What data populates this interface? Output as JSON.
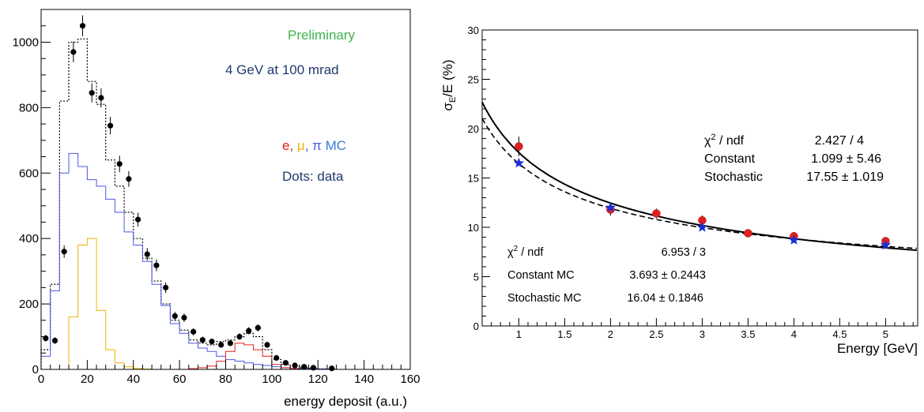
{
  "chart_data": [
    {
      "type": "histogram",
      "xlabel": "energy deposit (a.u.)",
      "ylabel": "",
      "xlim": [
        0,
        160
      ],
      "ylim": [
        0,
        1100
      ],
      "x_ticks": [
        "0",
        "20",
        "40",
        "60",
        "80",
        "100",
        "120",
        "140",
        "160"
      ],
      "y_ticks": [
        "0",
        "200",
        "400",
        "600",
        "800",
        "1000"
      ],
      "annotations": {
        "preliminary": "Preliminary",
        "beam": "4 GeV at 100 mrad",
        "mc_e": "e",
        "mc_mu": "μ",
        "mc_pi": "π",
        "mc_suffix": "MC",
        "dots": "Dots: data"
      },
      "colors": {
        "preliminary": "#3cb44b",
        "beam": "#1f3a6e",
        "electron": "#e02020",
        "muon": "#f0b400",
        "pion": "#4a5ae0",
        "dots": "#1f3a6e",
        "mc_label": "#3a7be0"
      },
      "bin_edges": [
        0,
        4,
        8,
        12,
        16,
        20,
        24,
        28,
        32,
        36,
        40,
        44,
        48,
        52,
        56,
        60,
        64,
        68,
        72,
        76,
        80,
        84,
        88,
        92,
        96,
        100,
        104,
        108,
        112,
        116,
        120,
        124,
        128
      ],
      "series": [
        {
          "name": "data",
          "style": "points",
          "x": [
            2,
            6,
            10,
            14,
            18,
            22,
            26,
            30,
            34,
            38,
            42,
            46,
            50,
            54,
            58,
            62,
            66,
            70,
            74,
            78,
            82,
            86,
            90,
            94,
            98,
            102,
            106,
            110,
            114,
            118,
            126
          ],
          "y": [
            95,
            88,
            360,
            970,
            1050,
            845,
            830,
            745,
            628,
            582,
            458,
            352,
            318,
            250,
            163,
            158,
            115,
            90,
            85,
            75,
            80,
            100,
            118,
            127,
            75,
            35,
            20,
            12,
            8,
            5,
            3
          ],
          "yerr": [
            10,
            10,
            19,
            31,
            32,
            29,
            29,
            27,
            25,
            24,
            21,
            19,
            18,
            16,
            13,
            13,
            11,
            10,
            9,
            9,
            9,
            10,
            11,
            11,
            9,
            6,
            5,
            4,
            3,
            2,
            2
          ]
        },
        {
          "name": "total MC",
          "style": "step-dotted",
          "values": [
            60,
            260,
            820,
            1000,
            1010,
            880,
            810,
            640,
            560,
            480,
            400,
            340,
            270,
            200,
            150,
            120,
            90,
            80,
            75,
            85,
            90,
            100,
            110,
            100,
            60,
            30,
            15,
            10,
            5,
            3,
            2,
            1
          ]
        },
        {
          "name": "pion",
          "style": "step",
          "values": [
            40,
            240,
            600,
            660,
            620,
            580,
            560,
            520,
            480,
            420,
            380,
            330,
            260,
            195,
            140,
            110,
            80,
            65,
            55,
            40,
            30,
            25,
            20,
            15,
            12,
            8,
            5,
            3,
            2,
            1,
            1,
            0
          ]
        },
        {
          "name": "muon",
          "style": "step",
          "values": [
            0,
            0,
            0,
            160,
            380,
            400,
            180,
            60,
            20,
            8,
            3,
            1,
            0,
            0,
            0,
            0,
            0,
            0,
            0,
            0,
            0,
            0,
            0,
            0,
            0,
            0,
            0,
            0,
            0,
            0,
            0,
            0
          ]
        },
        {
          "name": "electron",
          "style": "step",
          "values": [
            0,
            0,
            0,
            0,
            0,
            0,
            0,
            0,
            0,
            0,
            0,
            0,
            0,
            0,
            0,
            0,
            2,
            5,
            10,
            25,
            55,
            80,
            75,
            60,
            40,
            15,
            5,
            2,
            0,
            0,
            0,
            0
          ]
        }
      ]
    },
    {
      "type": "scatter",
      "xlabel": "Energy [GeV]",
      "ylabel_main": "σ",
      "ylabel_sub": "E",
      "ylabel_rest": "/E (%)",
      "xlim": [
        0.6,
        5.35
      ],
      "ylim": [
        0,
        30
      ],
      "x_ticks": [
        "1",
        "1.5",
        "2",
        "2.5",
        "3",
        "3.5",
        "4",
        "4.5",
        "5"
      ],
      "y_ticks": [
        "0",
        "5",
        "10",
        "15",
        "20",
        "25",
        "30"
      ],
      "series": [
        {
          "name": "data",
          "marker": "circle",
          "color": "#e02020",
          "x": [
            1,
            2,
            2.5,
            3,
            3.5,
            4,
            5
          ],
          "y": [
            18.2,
            11.8,
            11.4,
            10.7,
            9.4,
            9.1,
            8.6
          ],
          "yerr": [
            1.0,
            0.6,
            0.5,
            0.5,
            0.3,
            0.3,
            0.3
          ]
        },
        {
          "name": "MC",
          "marker": "star",
          "color": "#1a2fd6",
          "x": [
            1,
            2,
            3,
            4,
            5
          ],
          "y": [
            16.5,
            12.0,
            10.0,
            8.7,
            8.2
          ]
        },
        {
          "name": "data fit",
          "style": "solid",
          "constant": 1.099,
          "stochastic": 17.55
        },
        {
          "name": "MC fit",
          "style": "dashed",
          "constant": 3.693,
          "stochastic": 16.04
        }
      ],
      "stats_data": {
        "chi2_label": "χ",
        "chi2_sup": "2",
        "chi2_rest": " / ndf",
        "chi2_value": "2.427 / 4",
        "constant_label": "Constant",
        "constant_value": "1.099 ±  5.46",
        "stochastic_label": "Stochastic",
        "stochastic_value": "17.55 ± 1.019"
      },
      "stats_mc": {
        "chi2_label": "χ",
        "chi2_sup": "2",
        "chi2_rest": " / ndf",
        "chi2_value": "6.953 / 3",
        "constant_label": "Constant MC",
        "constant_value": "3.693 ± 0.2443",
        "stochastic_label": "Stochastic MC",
        "stochastic_value": "16.04 ± 0.1846"
      }
    }
  ]
}
